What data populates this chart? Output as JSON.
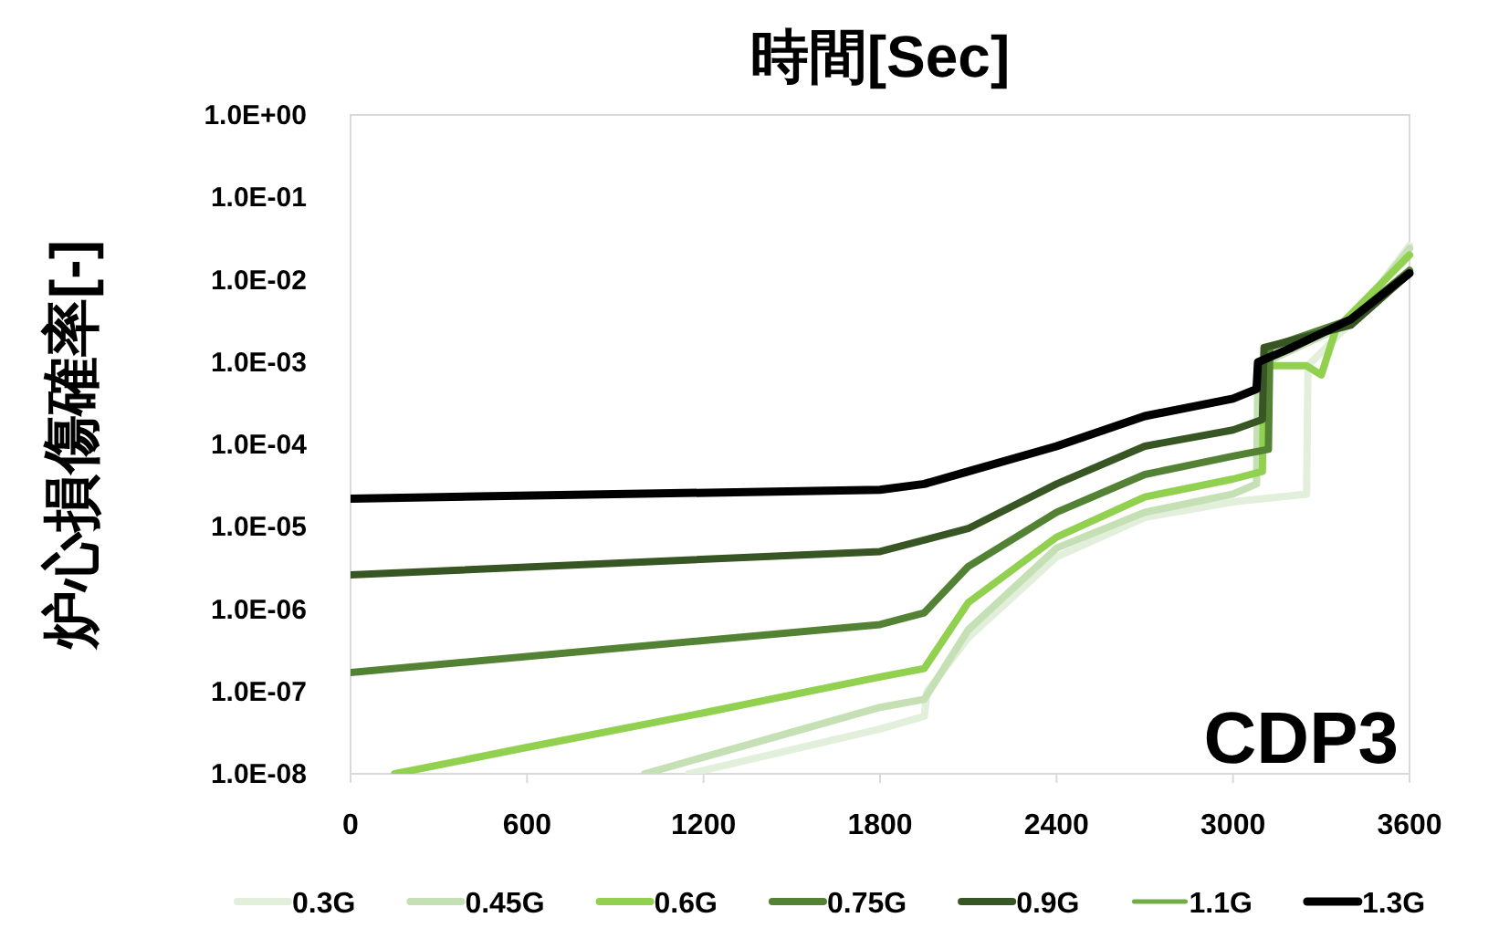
{
  "chart_data": {
    "type": "line",
    "title": "時間[Sec]",
    "ylabel": "炉心損傷確率[-]",
    "annotations": [
      "CDP3"
    ],
    "log": "y",
    "grid": false,
    "legend": "bottom",
    "marker": "none",
    "line_style": "solid",
    "xlim": [
      0,
      3600
    ],
    "xticks": [
      0,
      600,
      1200,
      1800,
      2400,
      3000,
      3600
    ],
    "ylim": [
      1e-08,
      1
    ],
    "yticks": [
      {
        "value": 1e-08,
        "label": "1.0E-08"
      },
      {
        "value": 1e-07,
        "label": "1.0E-07"
      },
      {
        "value": 1e-06,
        "label": "1.0E-06"
      },
      {
        "value": 1e-05,
        "label": "1.0E-05"
      },
      {
        "value": 0.0001,
        "label": "1.0E-04"
      },
      {
        "value": 0.001,
        "label": "1.0E-03"
      },
      {
        "value": 0.01,
        "label": "1.0E-02"
      },
      {
        "value": 0.1,
        "label": "1.0E-01"
      },
      {
        "value": 1,
        "label": "1.0E+00"
      }
    ],
    "series": [
      {
        "name": "0.3G",
        "color": "#e2efda",
        "x": [
          1150,
          1800,
          1950,
          1960,
          2100,
          2400,
          2700,
          3000,
          3250,
          3255,
          3400,
          3600
        ],
        "values": [
          1e-08,
          3.5e-08,
          5e-08,
          1e-07,
          4.5e-07,
          4.3e-06,
          1.3e-05,
          2e-05,
          2.5e-05,
          0.0009,
          0.003,
          0.026
        ]
      },
      {
        "name": "0.45G",
        "color": "#c5e0b4",
        "x": [
          1000,
          1800,
          1950,
          2100,
          2400,
          2700,
          3000,
          3080,
          3085,
          3400,
          3600
        ],
        "values": [
          1e-08,
          6.4e-08,
          8e-08,
          5.6e-07,
          5.5e-06,
          1.5e-05,
          2.5e-05,
          3.3e-05,
          0.0009,
          0.003,
          0.024
        ]
      },
      {
        "name": "0.6G",
        "color": "#92d050",
        "x": [
          150,
          600,
          1200,
          1800,
          1950,
          2100,
          2400,
          2700,
          3000,
          3100,
          3105,
          3250,
          3300,
          3350,
          3600
        ],
        "values": [
          1e-08,
          2.1e-08,
          5.5e-08,
          1.5e-07,
          1.9e-07,
          1.2e-06,
          7.5e-06,
          2.3e-05,
          3.8e-05,
          4.7e-05,
          0.0009,
          0.0009,
          0.0007,
          0.0025,
          0.02
        ]
      },
      {
        "name": "0.75G",
        "color": "#548235",
        "x": [
          0,
          1800,
          1950,
          2100,
          2400,
          2700,
          3000,
          3120,
          3125,
          3400,
          3600
        ],
        "values": [
          1.7e-07,
          6.5e-07,
          9e-07,
          3.3e-06,
          1.5e-05,
          4.3e-05,
          7.2e-05,
          8.7e-05,
          0.0015,
          0.0033,
          0.013
        ]
      },
      {
        "name": "0.9G",
        "color": "#375623",
        "x": [
          0,
          1800,
          2100,
          2400,
          2700,
          3000,
          3100,
          3105,
          3400,
          3600
        ],
        "values": [
          2.6e-06,
          5e-06,
          9.5e-06,
          3.3e-05,
          9.5e-05,
          0.00015,
          0.0002,
          0.0015,
          0.0028,
          0.012
        ]
      },
      {
        "name": "1.1G",
        "color": "#70ad47"
      },
      {
        "name": "1.3G",
        "color": "#000000",
        "x": [
          0,
          1800,
          1950,
          2100,
          2400,
          2700,
          3000,
          3080,
          3085,
          3200,
          3400,
          3600
        ],
        "values": [
          2.2e-05,
          2.8e-05,
          3.3e-05,
          4.7e-05,
          9.5e-05,
          0.00022,
          0.00036,
          0.00047,
          0.001,
          0.0015,
          0.0033,
          0.012
        ]
      }
    ]
  }
}
